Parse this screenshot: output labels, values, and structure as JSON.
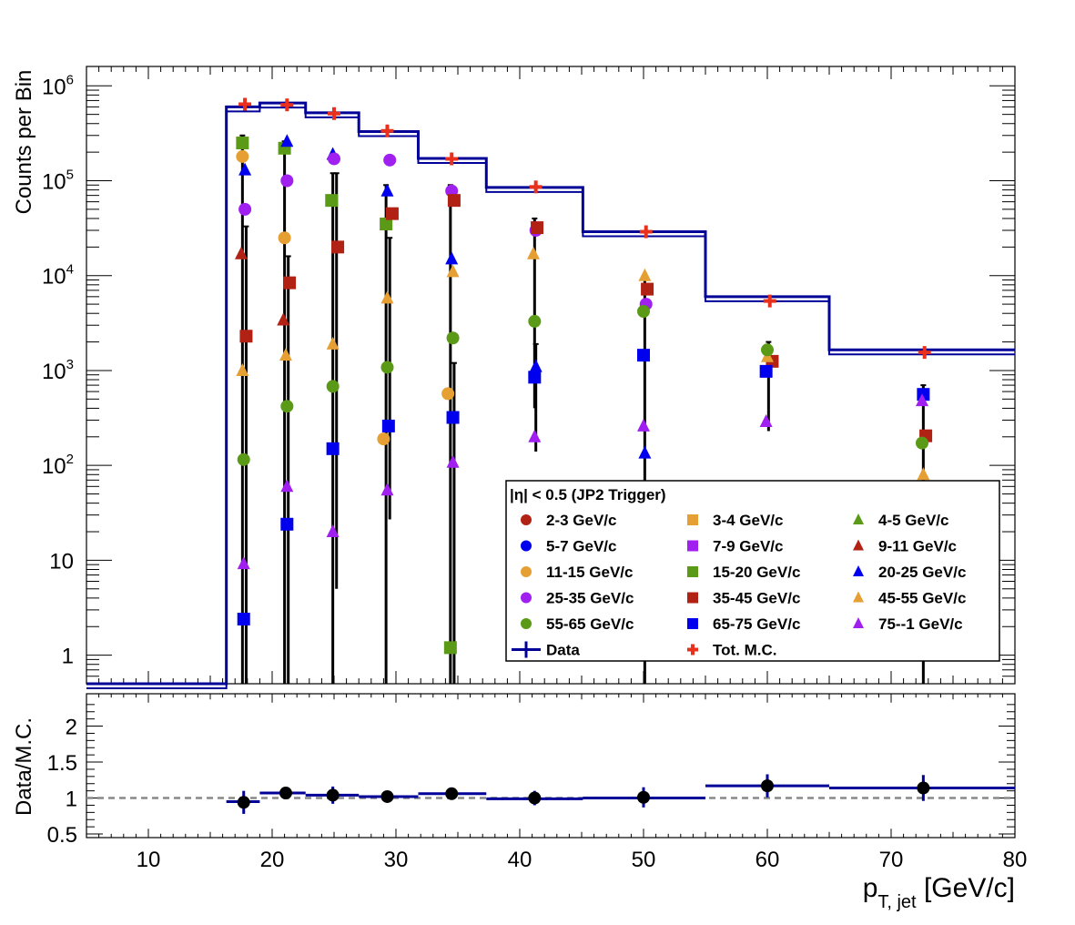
{
  "chart_data": {
    "type": "scatter",
    "top_panel": {
      "ylabel": "Counts per Bin",
      "yscale": "log",
      "ylim": [
        0.5,
        1600000
      ],
      "xlim": [
        5,
        80
      ],
      "ytick_labels": [
        {
          "value": 1,
          "label": "1"
        },
        {
          "value": 10,
          "label": "10"
        },
        {
          "value": 100,
          "label": "10^2"
        },
        {
          "value": 1000,
          "label": "10^3"
        },
        {
          "value": 10000,
          "label": "10^4"
        },
        {
          "value": 100000,
          "label": "10^5"
        },
        {
          "value": 1000000,
          "label": "10^6"
        }
      ],
      "data_histogram": {
        "name": "Data",
        "color": "#000099",
        "bins": [
          {
            "x0": 5,
            "x1": 16.3,
            "y": 0.5
          },
          {
            "x0": 16.3,
            "x1": 19.0,
            "y": 600000
          },
          {
            "x0": 19.0,
            "x1": 22.7,
            "y": 660000
          },
          {
            "x0": 22.7,
            "x1": 27.0,
            "y": 520000
          },
          {
            "x0": 27.0,
            "x1": 31.8,
            "y": 330000
          },
          {
            "x0": 31.8,
            "x1": 37.3,
            "y": 172000
          },
          {
            "x0": 37.3,
            "x1": 45.1,
            "y": 85000
          },
          {
            "x0": 45.1,
            "x1": 55.0,
            "y": 29000
          },
          {
            "x0": 55.0,
            "x1": 65.0,
            "y": 6000
          },
          {
            "x0": 65.0,
            "x1": 80.0,
            "y": 1650
          }
        ]
      },
      "series": [
        {
          "name": "11-15 GeV/c",
          "marker": "circle",
          "color": "#E69F33",
          "points": [
            {
              "x": 17.6,
              "y": 180000
            },
            {
              "x": 21.0,
              "y": 25000
            },
            {
              "x": 29.0,
              "y": 190
            },
            {
              "x": 34.2,
              "y": 570
            }
          ]
        },
        {
          "name": "15-20 GeV/c",
          "marker": "square",
          "color": "#5A9A16",
          "points": [
            {
              "x": 17.6,
              "y": 250000
            },
            {
              "x": 21.0,
              "y": 220000
            },
            {
              "x": 24.8,
              "y": 62000
            },
            {
              "x": 29.2,
              "y": 35000
            },
            {
              "x": 34.4,
              "y": 1.2
            }
          ]
        },
        {
          "name": "20-25 GeV/c",
          "marker": "triangle",
          "color": "#0000EE",
          "points": [
            {
              "x": 17.8,
              "y": 130000
            },
            {
              "x": 21.2,
              "y": 260000
            },
            {
              "x": 24.9,
              "y": 190000
            },
            {
              "x": 29.3,
              "y": 78000
            },
            {
              "x": 34.5,
              "y": 15000
            },
            {
              "x": 41.3,
              "y": 1100
            },
            {
              "x": 50.1,
              "y": 135
            }
          ]
        },
        {
          "name": "25-35 GeV/c",
          "marker": "circle",
          "color": "#A020F0",
          "points": [
            {
              "x": 17.8,
              "y": 50000
            },
            {
              "x": 21.2,
              "y": 100000
            },
            {
              "x": 25.0,
              "y": 170000
            },
            {
              "x": 29.5,
              "y": 165000
            },
            {
              "x": 34.5,
              "y": 78000
            },
            {
              "x": 41.3,
              "y": 30000
            },
            {
              "x": 50.2,
              "y": 5000
            }
          ]
        },
        {
          "name": "35-45 GeV/c",
          "marker": "square",
          "color": "#B22214",
          "points": [
            {
              "x": 25.3,
              "y": 20000
            },
            {
              "x": 29.7,
              "y": 45000
            },
            {
              "x": 34.7,
              "y": 62000
            },
            {
              "x": 41.4,
              "y": 32000
            },
            {
              "x": 50.3,
              "y": 7200
            },
            {
              "x": 60.4,
              "y": 1250
            },
            {
              "x": 72.8,
              "y": 205
            }
          ]
        },
        {
          "name": "9-11 GeV/c",
          "marker": "triangle",
          "color": "#B22214",
          "points": [
            {
              "x": 17.5,
              "y": 17000
            },
            {
              "x": 20.9,
              "y": 3400
            }
          ]
        },
        {
          "name": "35-45 GeV/c",
          "marker": "square",
          "color": "#B22214",
          "points": [
            {
              "x": 17.9,
              "y": 2300
            },
            {
              "x": 21.4,
              "y": 8400
            }
          ]
        },
        {
          "name": "45-55 GeV/c",
          "marker": "triangle",
          "color": "#E69F33",
          "points": [
            {
              "x": 17.6,
              "y": 1000
            },
            {
              "x": 21.1,
              "y": 1450
            },
            {
              "x": 24.9,
              "y": 1900
            },
            {
              "x": 29.3,
              "y": 5800
            },
            {
              "x": 34.6,
              "y": 11000
            },
            {
              "x": 41.1,
              "y": 17000
            },
            {
              "x": 50.1,
              "y": 10000
            },
            {
              "x": 60.0,
              "y": 1400
            },
            {
              "x": 72.6,
              "y": 80
            }
          ]
        },
        {
          "name": "55-65 GeV/c",
          "marker": "circle",
          "color": "#5A9A16",
          "points": [
            {
              "x": 17.7,
              "y": 115
            },
            {
              "x": 21.2,
              "y": 420
            },
            {
              "x": 24.9,
              "y": 680
            },
            {
              "x": 29.3,
              "y": 1080
            },
            {
              "x": 34.6,
              "y": 2200
            },
            {
              "x": 41.2,
              "y": 3300
            },
            {
              "x": 50.0,
              "y": 4200
            },
            {
              "x": 60.0,
              "y": 1650
            },
            {
              "x": 72.5,
              "y": 172
            }
          ]
        },
        {
          "name": "65-75 GeV/c",
          "marker": "square",
          "color": "#0000EE",
          "points": [
            {
              "x": 17.7,
              "y": 2.4
            },
            {
              "x": 21.2,
              "y": 24
            },
            {
              "x": 24.9,
              "y": 150
            },
            {
              "x": 29.4,
              "y": 260
            },
            {
              "x": 34.6,
              "y": 320
            },
            {
              "x": 41.2,
              "y": 850
            },
            {
              "x": 50.0,
              "y": 1450
            },
            {
              "x": 59.9,
              "y": 980
            },
            {
              "x": 72.6,
              "y": 560
            }
          ]
        },
        {
          "name": "75--1 GeV/c",
          "marker": "triangle",
          "color": "#A020F0",
          "points": [
            {
              "x": 17.7,
              "y": 9.2
            },
            {
              "x": 21.2,
              "y": 60
            },
            {
              "x": 24.9,
              "y": 20
            },
            {
              "x": 29.3,
              "y": 55
            },
            {
              "x": 34.6,
              "y": 108
            },
            {
              "x": 41.2,
              "y": 200
            },
            {
              "x": 50.0,
              "y": 260
            },
            {
              "x": 59.9,
              "y": 290
            },
            {
              "x": 72.5,
              "y": 480
            }
          ]
        },
        {
          "name": "Tot. M.C.",
          "marker": "cross",
          "color": "#E8301C",
          "points": [
            {
              "x": 17.8,
              "y": 640000
            },
            {
              "x": 21.2,
              "y": 630000
            },
            {
              "x": 25.0,
              "y": 510000
            },
            {
              "x": 29.3,
              "y": 335000
            },
            {
              "x": 34.5,
              "y": 170000
            },
            {
              "x": 41.3,
              "y": 86000
            },
            {
              "x": 50.2,
              "y": 29000
            },
            {
              "x": 60.2,
              "y": 5400
            },
            {
              "x": 72.7,
              "y": 1550
            }
          ]
        }
      ],
      "error_bars": [
        {
          "x": 17.6,
          "low": 0.5,
          "high": 300000
        },
        {
          "x": 21.0,
          "low": 0.5,
          "high": 260000
        },
        {
          "x": 24.9,
          "low": 0.5,
          "high": 120000
        },
        {
          "x": 29.2,
          "low": 0.5,
          "high": 90000
        },
        {
          "x": 34.4,
          "low": 0.5,
          "high": 90000
        },
        {
          "x": 41.2,
          "low": 400,
          "high": 40000
        },
        {
          "x": 50.1,
          "low": 0.5,
          "high": 10000
        },
        {
          "x": 60.1,
          "low": 230,
          "high": 2000
        },
        {
          "x": 72.6,
          "low": 0.5,
          "high": 700
        },
        {
          "x": 17.9,
          "low": 0.5,
          "high": 33000
        },
        {
          "x": 21.3,
          "low": 0.5,
          "high": 16000
        },
        {
          "x": 25.2,
          "low": 5,
          "high": 120000
        },
        {
          "x": 29.5,
          "low": 27,
          "high": 25000
        },
        {
          "x": 34.7,
          "low": 0.5,
          "high": 1200
        },
        {
          "x": 41.3,
          "low": 140,
          "high": 1900
        }
      ],
      "legend": {
        "title": "|η| < 0.5 (JP2 Trigger)",
        "placement": "bottom-right",
        "entries": [
          {
            "label": "2-3 GeV/c",
            "marker": "circle",
            "color": "#B22214"
          },
          {
            "label": "3-4 GeV/c",
            "marker": "square",
            "color": "#E69F33"
          },
          {
            "label": "4-5 GeV/c",
            "marker": "triangle",
            "color": "#5A9A16"
          },
          {
            "label": "5-7 GeV/c",
            "marker": "circle",
            "color": "#0000EE"
          },
          {
            "label": "7-9 GeV/c",
            "marker": "square",
            "color": "#A020F0"
          },
          {
            "label": "9-11 GeV/c",
            "marker": "triangle",
            "color": "#B22214"
          },
          {
            "label": "11-15 GeV/c",
            "marker": "circle",
            "color": "#E69F33"
          },
          {
            "label": "15-20 GeV/c",
            "marker": "square",
            "color": "#5A9A16"
          },
          {
            "label": "20-25 GeV/c",
            "marker": "triangle",
            "color": "#0000EE"
          },
          {
            "label": "25-35 GeV/c",
            "marker": "circle",
            "color": "#A020F0"
          },
          {
            "label": "35-45 GeV/c",
            "marker": "square",
            "color": "#B22214"
          },
          {
            "label": "45-55 GeV/c",
            "marker": "triangle",
            "color": "#E69F33"
          },
          {
            "label": "55-65 GeV/c",
            "marker": "circle",
            "color": "#5A9A16"
          },
          {
            "label": "65-75 GeV/c",
            "marker": "square",
            "color": "#0000EE"
          },
          {
            "label": "75--1 GeV/c",
            "marker": "triangle",
            "color": "#A020F0"
          },
          {
            "label": "Data",
            "marker": "line",
            "color": "#000099"
          },
          {
            "label": "Tot. M.C.",
            "marker": "cross",
            "color": "#E8301C"
          }
        ]
      }
    },
    "ratio_panel": {
      "ylabel": "Data/M.C.",
      "ylim": [
        0.45,
        2.45
      ],
      "reference_line": 1,
      "ytick_labels": [
        {
          "value": 0.5,
          "label": "0.5"
        },
        {
          "value": 1,
          "label": "1"
        },
        {
          "value": 1.5,
          "label": "1.5"
        },
        {
          "value": 2,
          "label": "2"
        }
      ],
      "histogram": [
        {
          "x0": 16.3,
          "x1": 19.0,
          "y": 0.95
        },
        {
          "x0": 19.0,
          "x1": 22.7,
          "y": 1.07
        },
        {
          "x0": 22.7,
          "x1": 27.0,
          "y": 1.04
        },
        {
          "x0": 27.0,
          "x1": 31.8,
          "y": 1.02
        },
        {
          "x0": 31.8,
          "x1": 37.3,
          "y": 1.06
        },
        {
          "x0": 37.3,
          "x1": 45.1,
          "y": 0.99
        },
        {
          "x0": 45.1,
          "x1": 55.0,
          "y": 1.0
        },
        {
          "x0": 55.0,
          "x1": 65.0,
          "y": 1.17
        },
        {
          "x0": 65.0,
          "x1": 80.0,
          "y": 1.14
        }
      ],
      "points": [
        {
          "x": 17.7,
          "y": 0.94,
          "err": 0.16
        },
        {
          "x": 21.1,
          "y": 1.07,
          "err": 0.08
        },
        {
          "x": 24.9,
          "y": 1.04,
          "err": 0.12
        },
        {
          "x": 29.3,
          "y": 1.02,
          "err": 0.06
        },
        {
          "x": 34.5,
          "y": 1.06,
          "err": 0.07
        },
        {
          "x": 41.2,
          "y": 1.0,
          "err": 0.1
        },
        {
          "x": 50.0,
          "y": 1.01,
          "err": 0.14
        },
        {
          "x": 60.0,
          "y": 1.17,
          "err": 0.16
        },
        {
          "x": 72.6,
          "y": 1.14,
          "err": 0.18
        }
      ]
    },
    "xlabel": "p_{T, jet} [GeV/c]",
    "xtick_labels": [
      {
        "value": 10,
        "label": "10"
      },
      {
        "value": 20,
        "label": "20"
      },
      {
        "value": 30,
        "label": "30"
      },
      {
        "value": 40,
        "label": "40"
      },
      {
        "value": 50,
        "label": "50"
      },
      {
        "value": 60,
        "label": "60"
      },
      {
        "value": 70,
        "label": "70"
      },
      {
        "value": 80,
        "label": "80"
      }
    ]
  }
}
